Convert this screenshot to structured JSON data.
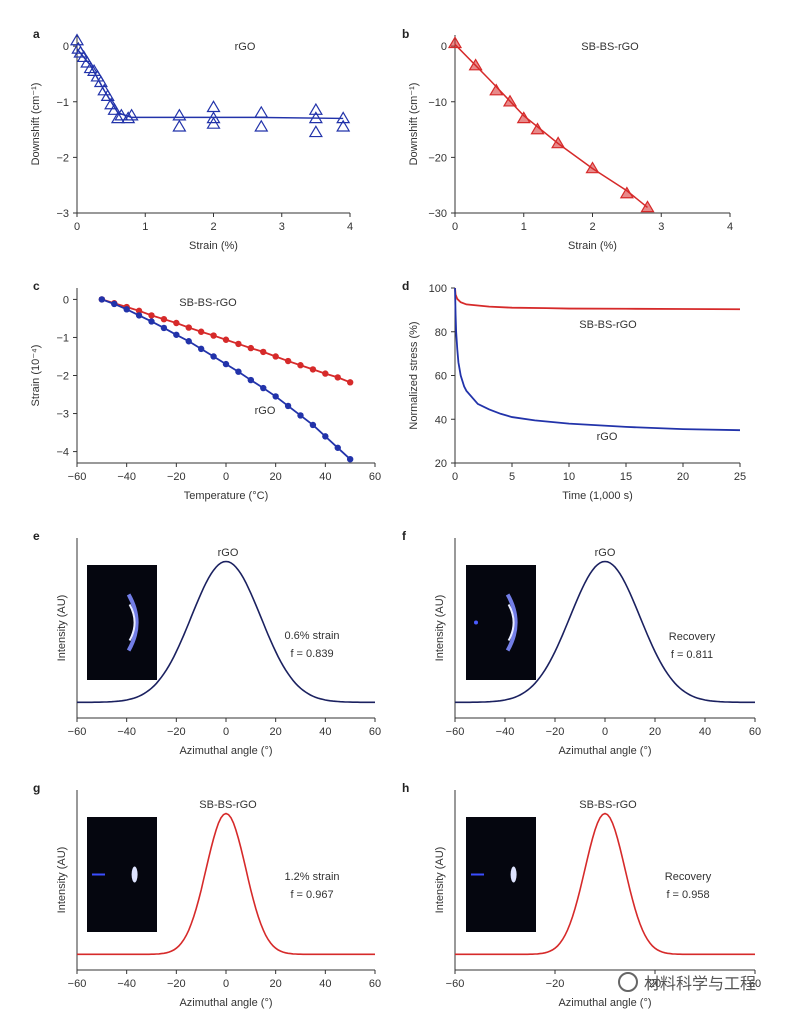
{
  "colors": {
    "blue": "#2233aa",
    "red": "#d62a2a",
    "navy": "#1b2160",
    "axis": "#333333"
  },
  "chart_data": [
    {
      "panel": "a",
      "type": "scatter",
      "x_label": "Strain (%)",
      "y_label": "Downshift (cm⁻¹)",
      "xlim": [
        0,
        4
      ],
      "ylim": [
        -3,
        0.2
      ],
      "x_ticks": [
        0,
        1,
        2,
        3,
        4
      ],
      "y_ticks": [
        0,
        -1,
        -2,
        -3
      ],
      "series": [
        {
          "name": "rGO",
          "color": "#2233aa",
          "marker": "triangle-open",
          "points": [
            [
              0.0,
              0.1
            ],
            [
              0.02,
              -0.05
            ],
            [
              0.05,
              -0.12
            ],
            [
              0.1,
              -0.2
            ],
            [
              0.15,
              -0.3
            ],
            [
              0.2,
              -0.4
            ],
            [
              0.25,
              -0.45
            ],
            [
              0.3,
              -0.55
            ],
            [
              0.35,
              -0.65
            ],
            [
              0.4,
              -0.8
            ],
            [
              0.45,
              -0.9
            ],
            [
              0.5,
              -1.05
            ],
            [
              0.55,
              -1.15
            ],
            [
              0.6,
              -1.3
            ],
            [
              0.65,
              -1.25
            ],
            [
              0.75,
              -1.3
            ],
            [
              0.8,
              -1.25
            ],
            [
              1.5,
              -1.25
            ],
            [
              1.5,
              -1.45
            ],
            [
              2.0,
              -1.1
            ],
            [
              2.0,
              -1.3
            ],
            [
              2.0,
              -1.4
            ],
            [
              2.7,
              -1.2
            ],
            [
              2.7,
              -1.45
            ],
            [
              3.5,
              -1.15
            ],
            [
              3.5,
              -1.3
            ],
            [
              3.5,
              -1.55
            ],
            [
              3.9,
              -1.3
            ],
            [
              3.9,
              -1.45
            ]
          ],
          "fit": [
            [
              0,
              -0.05
            ],
            [
              0.2,
              -0.35
            ],
            [
              0.4,
              -0.8
            ],
            [
              0.6,
              -1.2
            ],
            [
              0.8,
              -1.28
            ],
            [
              1.5,
              -1.28
            ],
            [
              2.5,
              -1.28
            ],
            [
              3.9,
              -1.3
            ]
          ]
        }
      ]
    },
    {
      "panel": "b",
      "type": "scatter",
      "x_label": "Strain (%)",
      "y_label": "Downshift (cm⁻¹)",
      "xlim": [
        0,
        4
      ],
      "ylim": [
        -30,
        2
      ],
      "x_ticks": [
        0,
        1,
        2,
        3,
        4
      ],
      "y_ticks": [
        0,
        -10,
        -20,
        -30
      ],
      "series": [
        {
          "name": "SB-BS-rGO",
          "color": "#d62a2a",
          "marker": "triangle-filled",
          "points": [
            [
              0.0,
              0.5
            ],
            [
              0.3,
              -3.5
            ],
            [
              0.6,
              -8
            ],
            [
              0.8,
              -10
            ],
            [
              1.0,
              -13
            ],
            [
              1.2,
              -15
            ],
            [
              1.5,
              -17.5
            ],
            [
              2.0,
              -22
            ],
            [
              2.5,
              -26.5
            ],
            [
              2.8,
              -29
            ]
          ],
          "fit": [
            [
              0.0,
              0.3
            ],
            [
              0.5,
              -6
            ],
            [
              1.0,
              -12.5
            ],
            [
              1.5,
              -17.5
            ],
            [
              2.0,
              -22
            ],
            [
              2.5,
              -26
            ],
            [
              2.8,
              -29
            ]
          ]
        }
      ]
    },
    {
      "panel": "c",
      "type": "line",
      "x_label": "Temperature (°C)",
      "y_label": "Strain (10⁻⁴)",
      "xlim": [
        -60,
        60
      ],
      "ylim": [
        -4.3,
        0.3
      ],
      "x_ticks": [
        -60,
        -40,
        -20,
        0,
        20,
        40,
        60
      ],
      "y_ticks": [
        0,
        -1,
        -2,
        -3,
        -4
      ],
      "series": [
        {
          "name": "SB-BS-rGO",
          "color": "#d62a2a",
          "x": [
            -50,
            -45,
            -40,
            -35,
            -30,
            -25,
            -20,
            -15,
            -10,
            -5,
            0,
            5,
            10,
            15,
            20,
            25,
            30,
            35,
            40,
            45,
            50
          ],
          "y": [
            0,
            -0.1,
            -0.2,
            -0.3,
            -0.42,
            -0.52,
            -0.62,
            -0.74,
            -0.85,
            -0.95,
            -1.06,
            -1.17,
            -1.28,
            -1.38,
            -1.5,
            -1.62,
            -1.73,
            -1.84,
            -1.95,
            -2.05,
            -2.18
          ]
        },
        {
          "name": "rGO",
          "color": "#2233aa",
          "x": [
            -50,
            -45,
            -40,
            -35,
            -30,
            -25,
            -20,
            -15,
            -10,
            -5,
            0,
            5,
            10,
            15,
            20,
            25,
            30,
            35,
            40,
            45,
            50
          ],
          "y": [
            0,
            -0.12,
            -0.26,
            -0.42,
            -0.58,
            -0.75,
            -0.93,
            -1.1,
            -1.3,
            -1.5,
            -1.7,
            -1.9,
            -2.12,
            -2.33,
            -2.55,
            -2.8,
            -3.05,
            -3.3,
            -3.6,
            -3.9,
            -4.2
          ]
        }
      ]
    },
    {
      "panel": "d",
      "type": "line",
      "x_label": "Time (1,000 s)",
      "y_label": "Normalized stress (%)",
      "xlim": [
        0,
        25
      ],
      "ylim": [
        20,
        100
      ],
      "x_ticks": [
        0,
        5,
        10,
        15,
        20,
        25
      ],
      "y_ticks": [
        20,
        40,
        60,
        80,
        100
      ],
      "series": [
        {
          "name": "SB-BS-rGO",
          "color": "#d62a2a",
          "x": [
            0,
            0.05,
            0.2,
            0.5,
            1,
            2,
            3,
            5,
            8,
            10,
            15,
            20,
            25
          ],
          "y": [
            100,
            97,
            95,
            93.5,
            92.5,
            92,
            91.5,
            91,
            90.8,
            90.6,
            90.5,
            90.4,
            90.3
          ]
        },
        {
          "name": "rGO",
          "color": "#2233aa",
          "x": [
            0,
            0.05,
            0.1,
            0.2,
            0.3,
            0.5,
            0.8,
            1,
            2,
            3,
            4,
            5,
            7,
            10,
            15,
            20,
            25
          ],
          "y": [
            100,
            88,
            80,
            72,
            66,
            60,
            55,
            53,
            47,
            44.5,
            42.5,
            41,
            39.5,
            38,
            36.5,
            35.5,
            35
          ]
        }
      ]
    },
    {
      "panel": "e",
      "type": "line",
      "x_label": "Azimuthal angle (°)",
      "y_label": "Intensity (AU)",
      "xlim": [
        -60,
        60
      ],
      "x_ticks": [
        -60,
        -40,
        -20,
        0,
        20,
        40,
        60
      ],
      "peak_width_sigma": 14,
      "series": [
        {
          "name": "rGO",
          "color": "#1b2160"
        }
      ],
      "annotations": [
        "0.6% strain",
        "f = 0.839"
      ]
    },
    {
      "panel": "f",
      "type": "line",
      "x_label": "Azimuthal angle (°)",
      "y_label": "Intensity (AU)",
      "xlim": [
        -60,
        60
      ],
      "x_ticks": [
        -60,
        -40,
        -20,
        0,
        20,
        40,
        60
      ],
      "peak_width_sigma": 14,
      "series": [
        {
          "name": "rGO",
          "color": "#1b2160"
        }
      ],
      "annotations": [
        "Recovery",
        "f = 0.811"
      ]
    },
    {
      "panel": "g",
      "type": "line",
      "x_label": "Azimuthal angle (°)",
      "y_label": "Intensity (AU)",
      "xlim": [
        -60,
        60
      ],
      "x_ticks": [
        -60,
        -40,
        -20,
        0,
        20,
        40,
        60
      ],
      "peak_width_sigma": 8,
      "series": [
        {
          "name": "SB-BS-rGO",
          "color": "#d62a2a"
        }
      ],
      "annotations": [
        "1.2% strain",
        "f = 0.967"
      ]
    },
    {
      "panel": "h",
      "type": "line",
      "x_label": "Azimuthal angle (°)",
      "y_label": "Intensity (AU)",
      "xlim": [
        -60,
        60
      ],
      "x_ticks": [
        -60,
        -20,
        20,
        60
      ],
      "peak_width_sigma": 8,
      "series": [
        {
          "name": "SB-BS-rGO",
          "color": "#d62a2a"
        }
      ],
      "annotations": [
        "Recovery",
        "f = 0.958"
      ]
    }
  ],
  "watermark": "材料科学与工程"
}
